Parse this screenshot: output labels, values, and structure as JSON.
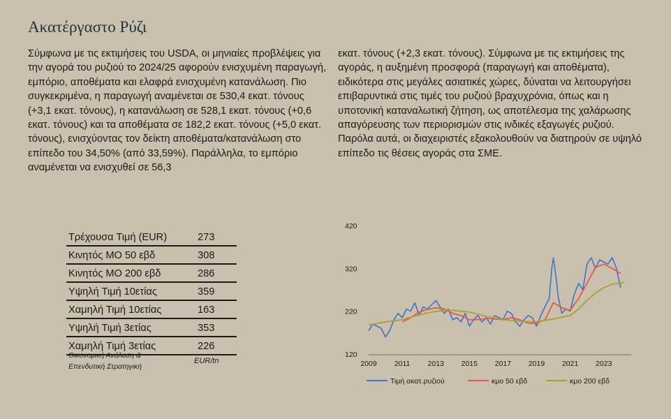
{
  "page": {
    "title": "Ακατέργαστο Ρύζι",
    "paragraph_left": "Σύμφωνα με τις εκτιμήσεις του USDA, οι μηνιαίες προβλέψεις για την αγορά του ρυζιού το 2024/25 αφορούν ενισχυμένη παραγωγή, εμπόριο, αποθέματα και ελαφρά ενισχυμένη κατανάλωση. Πιο συγκεκριμένα, η παραγωγή αναμένεται σε 530,4 εκατ. τόνους (+3,1 εκατ. τόνους), η κατανάλωση σε 528,1 εκατ. τόνους (+0,6 εκατ. τόνους) και τα αποθέματα σε 182,2 εκατ. τόνους (+5,0 εκατ. τόνους), ενισχύοντας τον δείκτη αποθέματα/κατανάλωση στο επίπεδο του 34,50% (από 33,59%). Παράλληλα, το εμπόριο αναμένεται να ενισχυθεί σε 56,3",
    "paragraph_right": "εκατ. τόνους (+2,3 εκατ. τόνους). Σύμφωνα με τις εκτιμήσεις της αγοράς, η αυξημένη προσφορά (παραγωγή και αποθέματα), ειδικότερα στις μεγάλες ασιατικές χώρες, δύναται να λειτουργήσει επιβαρυντικά στις τιμές του ρυζιού βραχυχρόνια, όπως και η υποτονική καταναλωτική ζήτηση, ως αποτέλεσμα της χαλάρωσης απαγόρευσης των περιορισμών στις ινδικές εξαγωγές ρυζιού. Παρόλα αυτά, οι διαχειριστές εξακολουθούν να διατηρούν σε υψηλό επίπεδο τις θέσεις αγοράς στα ΣΜΕ."
  },
  "stats": {
    "rows": [
      {
        "label": "Τρέχουσα Τιμή (EUR)",
        "value": "273"
      },
      {
        "label": "Κινητός ΜΟ 50 εβδ",
        "value": "308"
      },
      {
        "label": "Κινητός ΜΟ 200 εβδ",
        "value": "286"
      },
      {
        "label": "Υψηλή Τιμή 10ετίας",
        "value": "359"
      },
      {
        "label": "Χαμηλή Τιμή 10ετίας",
        "value": "163"
      },
      {
        "label": "Υψηλή Τιμή 3ετίας",
        "value": "353"
      },
      {
        "label": "Χαμηλή Τιμή 3ετίας",
        "value": "226"
      }
    ],
    "source_line1": "Οικονομική Ανάλυση &",
    "source_line2": "Επενδυτική Στρατηγική",
    "unit": "EUR/tn"
  },
  "colors": {
    "background": "#c9c1ad",
    "title": "#17333d",
    "price": "#3d74c9",
    "ma50": "#e8574a",
    "ma200": "#a7a22a"
  },
  "chart_data": {
    "type": "line",
    "title": "",
    "xlabel": "",
    "ylabel": "",
    "xlim": [
      2009,
      2024.3
    ],
    "ylim": [
      120,
      420
    ],
    "yticks": [
      120,
      220,
      320,
      420
    ],
    "xticks": [
      "2009",
      "2011",
      "2013",
      "2015",
      "2017",
      "2019",
      "2021",
      "2023"
    ],
    "grid": false,
    "legend_position": "bottom",
    "series": [
      {
        "name": "Τιμή ακατ.ρυζιού",
        "x": [
          2009.0,
          2009.25,
          2009.5,
          2009.75,
          2010.0,
          2010.25,
          2010.5,
          2010.75,
          2011.0,
          2011.25,
          2011.5,
          2011.75,
          2012.0,
          2012.25,
          2012.5,
          2012.75,
          2013.0,
          2013.25,
          2013.5,
          2013.75,
          2014.0,
          2014.25,
          2014.5,
          2014.75,
          2015.0,
          2015.25,
          2015.5,
          2015.75,
          2016.0,
          2016.25,
          2016.5,
          2016.75,
          2017.0,
          2017.25,
          2017.5,
          2017.75,
          2018.0,
          2018.25,
          2018.5,
          2018.75,
          2019.0,
          2019.25,
          2019.5,
          2019.75,
          2019.9,
          2020.0,
          2020.15,
          2020.3,
          2020.5,
          2020.75,
          2021.0,
          2021.25,
          2021.5,
          2021.75,
          2022.0,
          2022.25,
          2022.5,
          2022.75,
          2023.0,
          2023.25,
          2023.5,
          2023.75,
          2024.0
        ],
        "values": [
          175,
          190,
          185,
          180,
          160,
          175,
          200,
          215,
          205,
          225,
          220,
          240,
          210,
          230,
          225,
          235,
          245,
          230,
          215,
          225,
          200,
          205,
          195,
          215,
          185,
          200,
          210,
          195,
          205,
          190,
          210,
          205,
          200,
          220,
          215,
          195,
          185,
          200,
          210,
          205,
          185,
          210,
          230,
          250,
          320,
          345,
          300,
          250,
          215,
          225,
          220,
          260,
          285,
          270,
          330,
          345,
          320,
          340,
          335,
          330,
          345,
          320,
          275
        ],
        "color": "#3d74c9"
      },
      {
        "name": "κμο 50 εβδ",
        "x": [
          2011.0,
          2011.5,
          2012.0,
          2012.5,
          2013.0,
          2013.5,
          2014.0,
          2014.5,
          2015.0,
          2015.5,
          2016.0,
          2016.5,
          2017.0,
          2017.5,
          2018.0,
          2018.5,
          2019.0,
          2019.5,
          2020.0,
          2020.5,
          2021.0,
          2021.5,
          2022.0,
          2022.5,
          2023.0,
          2023.5,
          2024.0
        ],
        "values": [
          195,
          205,
          218,
          224,
          228,
          225,
          215,
          210,
          200,
          200,
          203,
          202,
          200,
          205,
          200,
          192,
          192,
          200,
          240,
          228,
          222,
          250,
          285,
          322,
          330,
          320,
          308
        ],
        "color": "#e8574a"
      },
      {
        "name": "κμο 200 εβδ",
        "x": [
          2009.0,
          2010.0,
          2011.0,
          2012.0,
          2013.0,
          2014.0,
          2015.0,
          2016.0,
          2017.0,
          2018.0,
          2019.0,
          2020.0,
          2021.0,
          2021.5,
          2022.0,
          2022.5,
          2023.0,
          2023.5,
          2024.0,
          2024.2
        ],
        "values": [
          188,
          195,
          200,
          212,
          220,
          222,
          218,
          208,
          200,
          197,
          195,
          202,
          210,
          225,
          245,
          262,
          275,
          283,
          286,
          288
        ],
        "color": "#a7a22a"
      }
    ]
  }
}
